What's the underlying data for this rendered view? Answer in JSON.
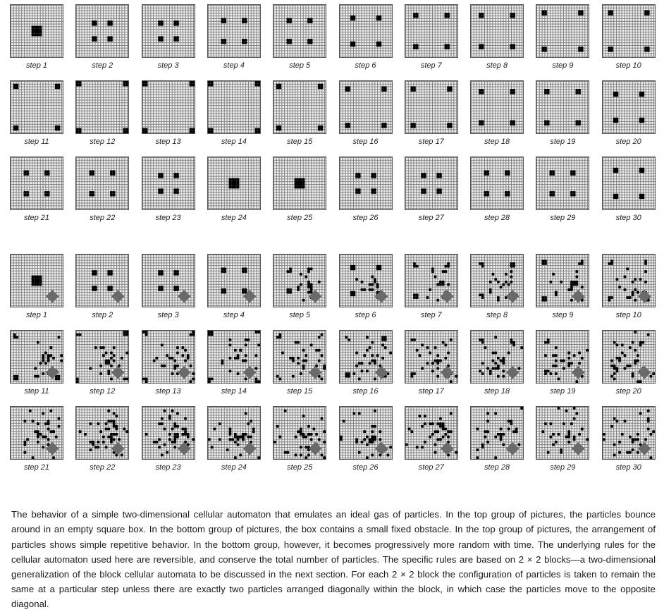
{
  "top_group": {
    "rows": [
      {
        "labels": [
          "step 1",
          "step 2",
          "step 3",
          "step 4",
          "step 5",
          "step 6",
          "step 7",
          "step 8",
          "step 9",
          "step 10"
        ]
      },
      {
        "labels": [
          "step 11",
          "step 12",
          "step 13",
          "step 14",
          "step 15",
          "step 16",
          "step 17",
          "step 18",
          "step 19",
          "step 20"
        ]
      },
      {
        "labels": [
          "step 21",
          "step 22",
          "step 23",
          "step 24",
          "step 25",
          "step 26",
          "step 27",
          "step 28",
          "step 29",
          "step 30"
        ]
      }
    ]
  },
  "bottom_group": {
    "rows": [
      {
        "labels": [
          "step 1",
          "step 2",
          "step 3",
          "step 4",
          "step 5",
          "step 6",
          "step 7",
          "step 8",
          "step 9",
          "step 10"
        ]
      },
      {
        "labels": [
          "step 11",
          "step 12",
          "step 13",
          "step 14",
          "step 15",
          "step 16",
          "step 17",
          "step 18",
          "step 19",
          "step 20"
        ]
      },
      {
        "labels": [
          "step 21",
          "step 22",
          "step 23",
          "step 24",
          "step 25",
          "step 26",
          "step 27",
          "step 28",
          "step 29",
          "step 30"
        ]
      }
    ]
  },
  "caption": "The behavior of a simple two-dimensional cellular automaton that emulates an ideal gas of particles. In the top group of pictures, the particles bounce around in an empty square box. In the bottom group of pictures, the box contains a small fixed obstacle. In the top group of pictures, the arrangement of particles shows simple repetitive behavior. In the bottom group, however, it becomes progressively more random with time. The underlying rules for the cellular automaton used here are reversible, and conserve the total number of particles. The specific rules are based on 2 × 2 blocks—a two-dimensional generalization of the block cellular automata to be discussed in the next section. For each 2 × 2 block the configuration of particles is taken to remain the same at a particular step unless there are exactly two particles arranged diagonally within the block, in which case the particles move to the opposite diagonal.",
  "colors": {
    "particle": "#000000",
    "obstacle": "#6a6a6a",
    "grid_line": "#7c7c7c"
  }
}
